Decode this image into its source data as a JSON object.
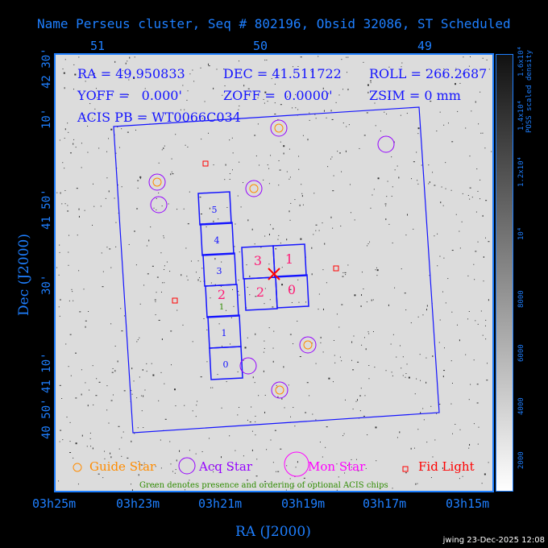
{
  "title": "Name Perseus cluster, Seq # 802196, Obsid 32086, ST Scheduled",
  "info": {
    "ra": "RA = 49.950833",
    "dec": "DEC = 41.511722",
    "roll": "ROLL = 266.2687",
    "yoff": "YOFF =   0.000'",
    "zoff": "ZOFF =  0.0000'",
    "zsim": "ZSIM = 0 mm",
    "acis_pb": "ACIS PB = WT0066C034"
  },
  "top_axis": [
    "51",
    "50",
    "49"
  ],
  "bottom_axis": [
    "03h25m",
    "03h23m",
    "03h21m",
    "03h19m",
    "03h17m",
    "03h15m"
  ],
  "left_axis": [
    "42 30'",
    "10'",
    "41 50'",
    "30'",
    "41 10'",
    "40 50'"
  ],
  "xlabel": "RA (J2000)",
  "ylabel": "Dec (J2000)",
  "colorbar": {
    "label": "POSS scaled density",
    "ticks": [
      "2000",
      "4000",
      "6000",
      "8000",
      "10⁴",
      "1.2x10⁴",
      "1.4x10⁴",
      "1.6x10⁴"
    ]
  },
  "legend": {
    "guide": "Guide Star",
    "acq": "Acq Star",
    "mon": "Mon Star",
    "fid": "Fid Light",
    "note": "Green denotes presence and ordering of optional ACIS chips"
  },
  "chips": {
    "s": [
      "5",
      "4",
      "3",
      "2",
      "1",
      "0"
    ],
    "s_optional": "1",
    "i": [
      "3",
      "1",
      "2",
      "0"
    ]
  },
  "colors": {
    "axis": "#1e7fff",
    "guide": "#ff8c00",
    "acq": "#9400ff",
    "mon": "#ff00ff",
    "fid": "#ff0000",
    "chip": "#1414ff",
    "chip_label_pink": "#ff1a75",
    "optional": "#2e8b00"
  },
  "footer": "jwing 23-Dec-2025 12:08"
}
